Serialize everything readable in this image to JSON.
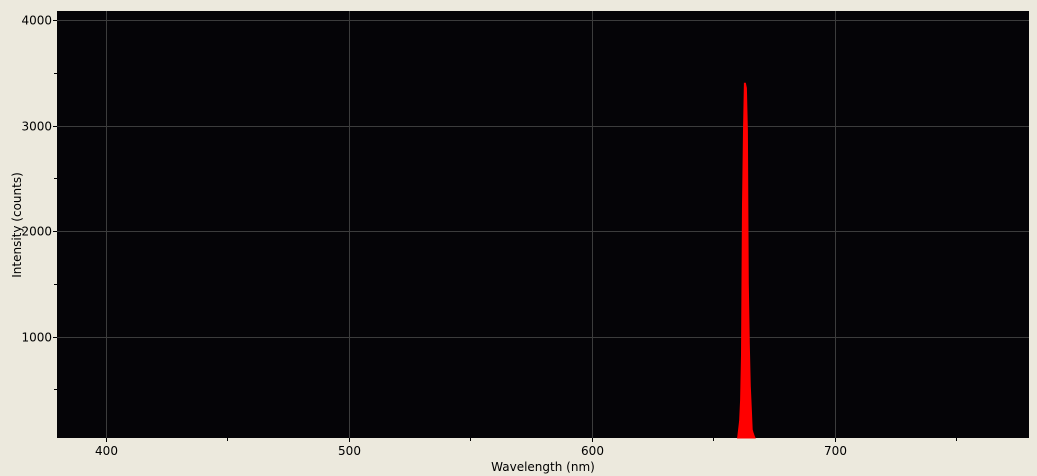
{
  "chart_data": {
    "type": "area",
    "title": "",
    "xlabel": "Wavelength (nm)",
    "ylabel": "Intensity (counts)",
    "xlim": [
      380,
      780
    ],
    "ylim": [
      40,
      4085
    ],
    "xticks": [
      400,
      500,
      600,
      700
    ],
    "xticks_minor": [
      450,
      550,
      650,
      750
    ],
    "yticks": [
      1000,
      2000,
      3000,
      4000
    ],
    "yticks_minor": [
      500,
      1500,
      2500,
      3500
    ],
    "xtick_labels": [
      "400",
      "500",
      "600",
      "700"
    ],
    "ytick_labels": [
      "1000",
      "2000",
      "3000",
      "4000"
    ],
    "grid": true,
    "legend": "none",
    "colors": {
      "series": "#ff0000",
      "plot_background": "#050407",
      "grid": "#3c3c3c",
      "page_background": "#ece9dd"
    },
    "series": [
      {
        "x": [
          660.1,
          660.5,
          660.9,
          661.3,
          661.7,
          662.1,
          662.5,
          662.9,
          663.3,
          663.7,
          664.1,
          664.5,
          664.9,
          665.3,
          665.7,
          666.1,
          666.5,
          666.9,
          667.3
        ],
        "values": [
          0,
          120,
          200,
          400,
          825,
          2255,
          2957,
          3400,
          3400,
          3355,
          2957,
          1507,
          930,
          530,
          320,
          120,
          85,
          60,
          0
        ]
      }
    ]
  }
}
